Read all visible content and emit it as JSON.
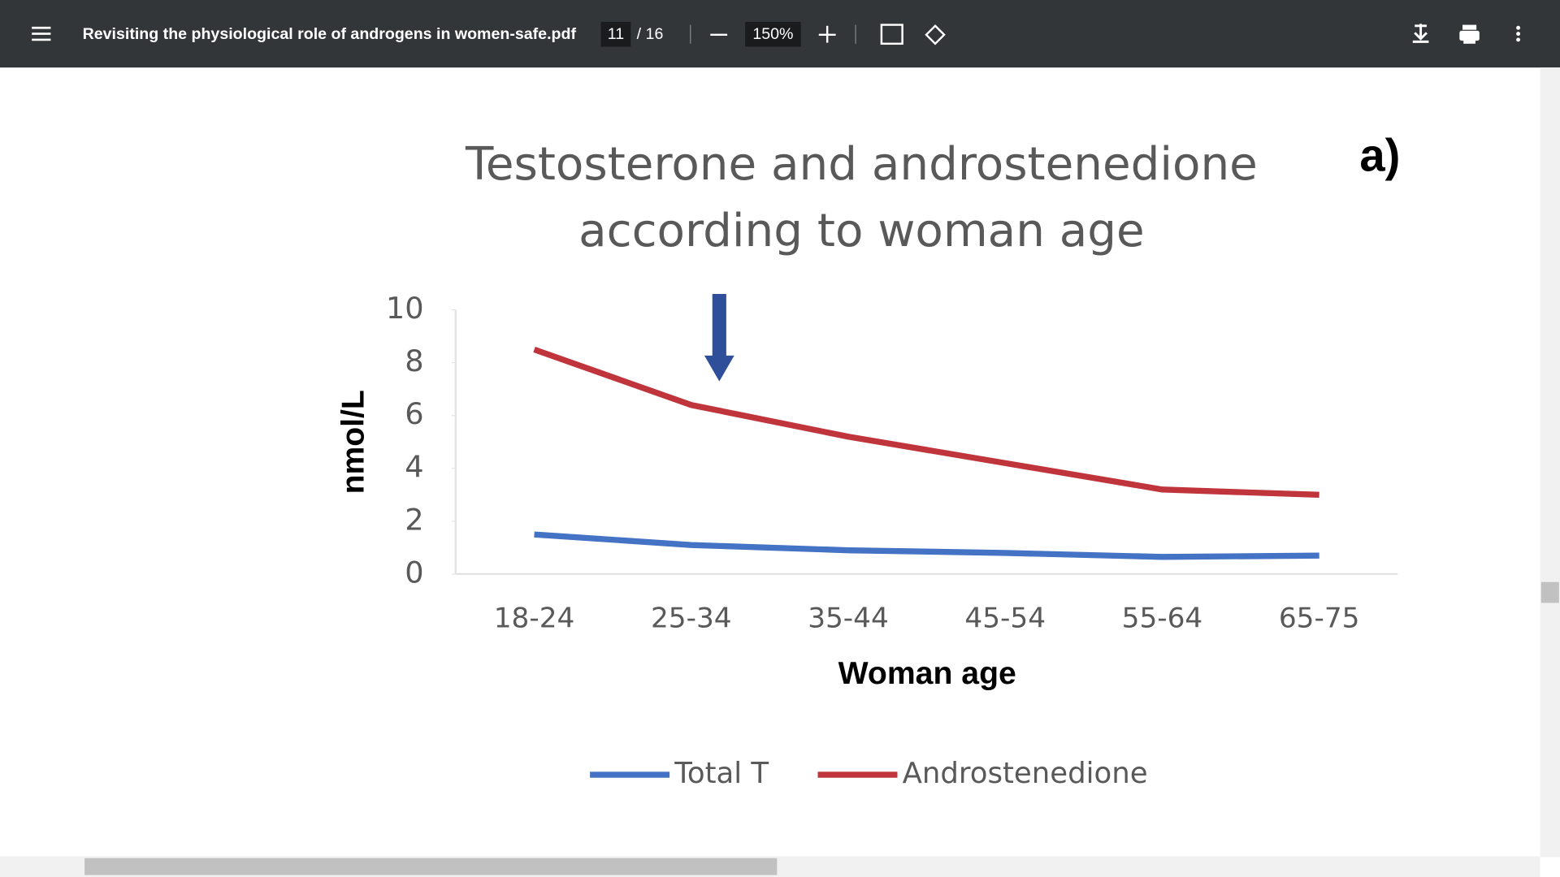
{
  "toolbar": {
    "title": "Revisiting the physiological role of androgens in women-safe.pdf",
    "page": "11",
    "page_count": "/ 16",
    "zoom": "150%"
  },
  "chart_data": {
    "type": "line",
    "title": [
      "Testosterone and androstenedione",
      "according to woman age"
    ],
    "annotation": "a)",
    "x_label": "Woman age",
    "y_label": "nmol/L",
    "categories": [
      "18-24",
      "25-34",
      "35-44",
      "45-54",
      "55-64",
      "65-75"
    ],
    "series": [
      {
        "name": "Total T",
        "color": "#4472c4",
        "values": [
          1.5,
          1.1,
          0.9,
          0.8,
          0.65,
          0.7
        ]
      },
      {
        "name": "Androstenedione",
        "color": "#c0343b",
        "values": [
          8.5,
          6.4,
          5.2,
          4.2,
          3.2,
          3.0
        ]
      }
    ],
    "ylim": [
      0,
      10
    ],
    "yticks": [
      0,
      2,
      4,
      6,
      8,
      10
    ],
    "grid": false,
    "legend": "bottom"
  }
}
